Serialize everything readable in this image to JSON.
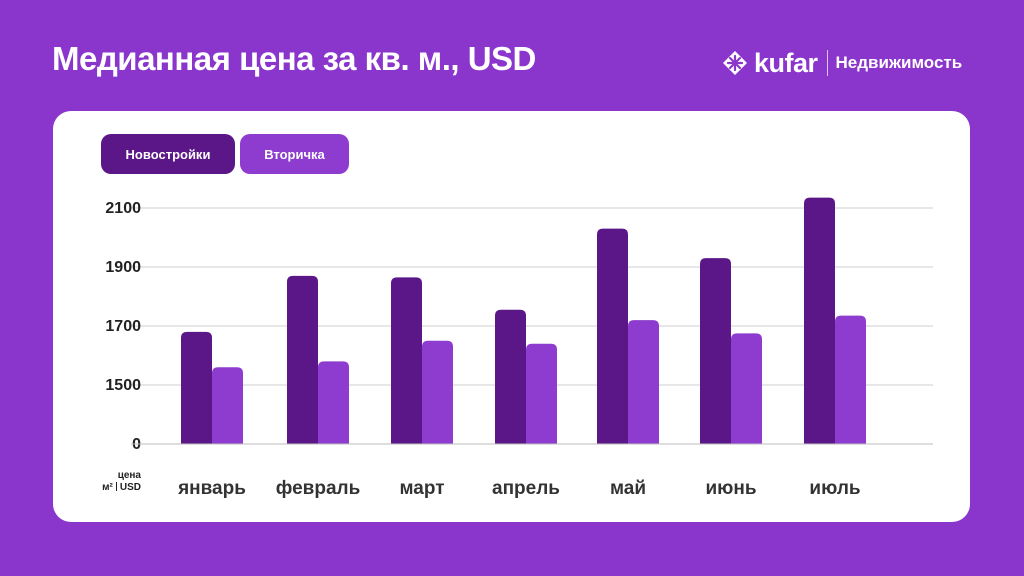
{
  "header": {
    "title": "Медианная цена за кв. м., USD",
    "brand_name": "kufar",
    "brand_section": "Недвижимость"
  },
  "colors": {
    "background": "#8a36cc",
    "new_buildings": "#5b1787",
    "secondary": "#8d3ccf"
  },
  "axis_unit": {
    "line1": "цена",
    "unit_left": "м²",
    "unit_right": "USD"
  },
  "chart_data": {
    "type": "bar",
    "categories": [
      "январь",
      "февраль",
      "март",
      "апрель",
      "май",
      "июнь",
      "июль"
    ],
    "series": [
      {
        "name": "Новостройки",
        "values": [
          1680,
          1870,
          1865,
          1755,
          2030,
          1930,
          2135
        ]
      },
      {
        "name": "Вторичка",
        "values": [
          1560,
          1580,
          1650,
          1640,
          1720,
          1675,
          1735
        ]
      }
    ],
    "y_ticks": [
      {
        "value": 0,
        "label": "0"
      },
      {
        "value": 1500,
        "label": "1500"
      },
      {
        "value": 1700,
        "label": "1700"
      },
      {
        "value": 1900,
        "label": "1900"
      },
      {
        "value": 2100,
        "label": "2100"
      }
    ],
    "y_axis_break": "between 0 and 1500",
    "grid": true,
    "legend_position": "top-left"
  }
}
